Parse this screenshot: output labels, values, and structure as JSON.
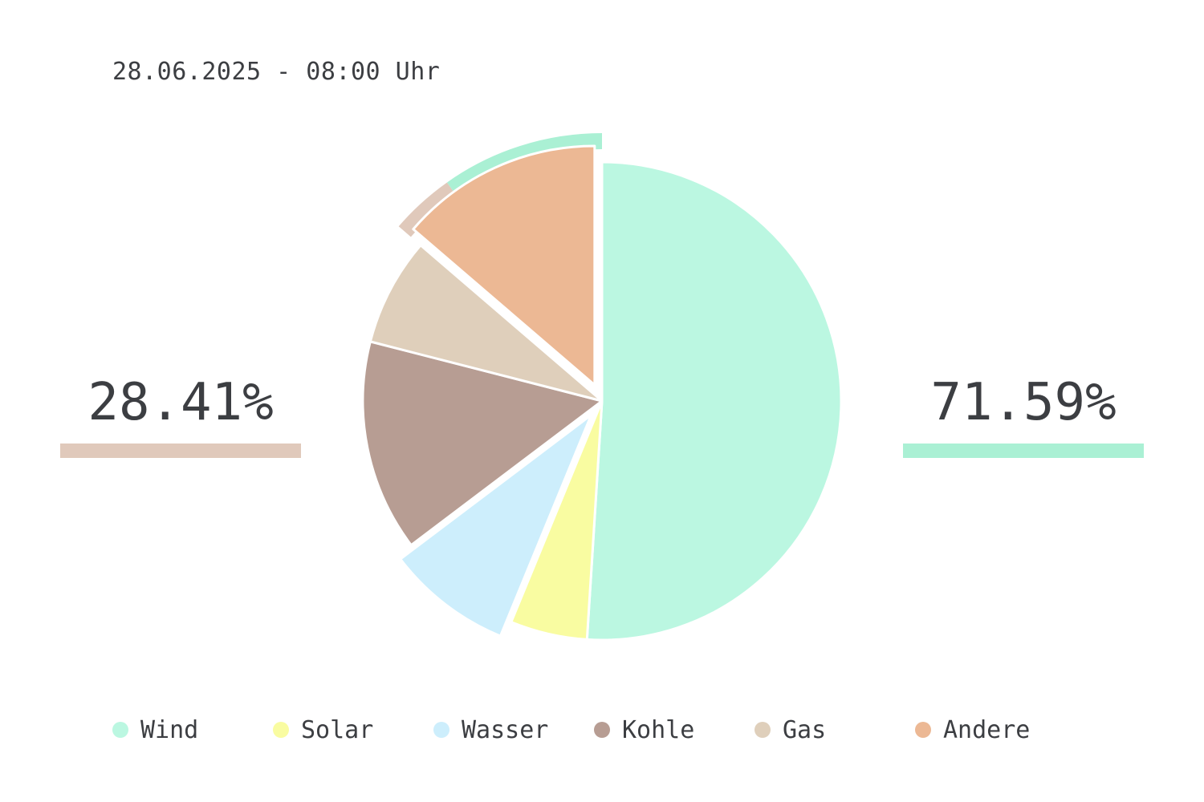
{
  "header": {
    "timestamp": "28.06.2025 - 08:00 Uhr"
  },
  "summary": {
    "left_value": "28.41%",
    "right_value": "71.59%",
    "left_color": "#e0c9bb",
    "right_color": "#aaf0d4"
  },
  "chart_data": {
    "type": "pie",
    "categories": [
      "Wind",
      "Solar",
      "Wasser",
      "Kohle",
      "Gas",
      "Andere"
    ],
    "values": [
      51.0,
      5.2,
      8.5,
      14.3,
      7.3,
      13.7
    ],
    "colors": [
      "#bbf7e1",
      "#f9fca1",
      "#cdeefc",
      "#b79d93",
      "#dfcfbb",
      "#ecb894"
    ],
    "exploded": [
      "Wasser",
      "Andere"
    ],
    "outer_arcs": [
      {
        "share": 28.41,
        "color": "#e0c9bb"
      },
      {
        "share": 71.59,
        "color": "#aaf0d4"
      }
    ],
    "legend_position": "bottom"
  },
  "legend": {
    "items": [
      {
        "label": "Wind",
        "color": "#bbf7e1"
      },
      {
        "label": "Solar",
        "color": "#f9fca1"
      },
      {
        "label": "Wasser",
        "color": "#cdeefc"
      },
      {
        "label": "Kohle",
        "color": "#b79d93"
      },
      {
        "label": "Gas",
        "color": "#dfcfbb"
      },
      {
        "label": "Andere",
        "color": "#ecb894"
      }
    ]
  }
}
